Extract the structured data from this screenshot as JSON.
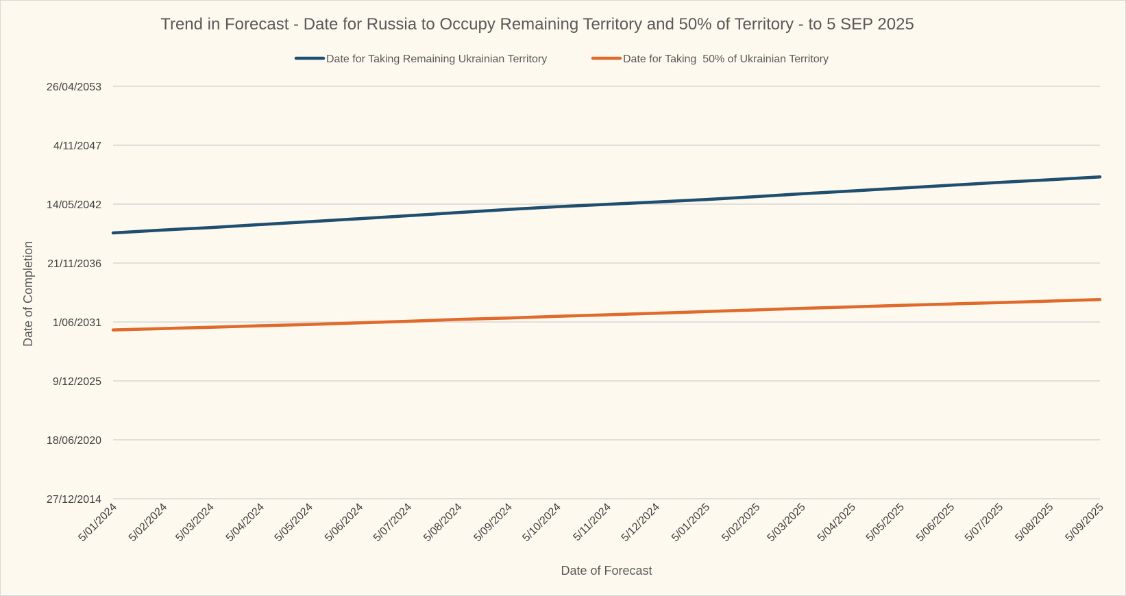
{
  "chart_data": {
    "type": "line",
    "title": "Trend in Forecast - Date for Russia to Occupy Remaining Territory and 50% of Territory - to 5 SEP 2025",
    "xlabel": "Date of Forecast",
    "ylabel": "Date of Completion",
    "legend_position": "top",
    "grid": "horizontal",
    "x_axis": {
      "type": "date",
      "min": "2024-01-05",
      "max": "2025-09-05",
      "ticks": [
        "2024-01-05",
        "2024-02-05",
        "2024-03-05",
        "2024-04-05",
        "2024-05-05",
        "2024-06-05",
        "2024-07-05",
        "2024-08-05",
        "2024-09-05",
        "2024-10-05",
        "2024-11-05",
        "2024-12-05",
        "2025-01-05",
        "2025-02-05",
        "2025-03-05",
        "2025-04-05",
        "2025-05-05",
        "2025-06-05",
        "2025-07-05",
        "2025-08-05",
        "2025-09-05"
      ],
      "tick_labels": [
        "5/01/2024",
        "5/02/2024",
        "5/03/2024",
        "5/04/2024",
        "5/05/2024",
        "5/06/2024",
        "5/07/2024",
        "5/08/2024",
        "5/09/2024",
        "5/10/2024",
        "5/11/2024",
        "5/12/2024",
        "5/01/2025",
        "5/02/2025",
        "5/03/2025",
        "5/04/2025",
        "5/05/2025",
        "5/06/2025",
        "5/07/2025",
        "5/08/2025",
        "5/09/2025"
      ]
    },
    "y_axis": {
      "type": "date",
      "min": "2014-12-27",
      "max": "2053-04-26",
      "ticks": [
        "2014-12-27",
        "2020-06-18",
        "2025-12-09",
        "2031-06-01",
        "2036-11-21",
        "2042-05-14",
        "2047-11-04",
        "2053-04-26"
      ],
      "tick_labels": [
        "27/12/2014",
        "18/06/2020",
        "9/12/2025",
        "1/06/2031",
        "21/11/2036",
        "14/05/2042",
        "4/11/2047",
        "26/04/2053"
      ]
    },
    "series": [
      {
        "name": "Date for Taking Remaining Ukrainian Territory",
        "color": "#1f4e6e",
        "points": [
          [
            "2024-01-05",
            "2039-09-10"
          ],
          [
            "2024-02-05",
            "2039-12-20"
          ],
          [
            "2024-03-05",
            "2040-03-10"
          ],
          [
            "2024-04-05",
            "2040-06-20"
          ],
          [
            "2024-05-05",
            "2040-09-25"
          ],
          [
            "2024-06-05",
            "2041-01-05"
          ],
          [
            "2024-07-05",
            "2041-04-15"
          ],
          [
            "2024-08-05",
            "2041-08-01"
          ],
          [
            "2024-09-05",
            "2041-11-15"
          ],
          [
            "2024-10-05",
            "2042-02-15"
          ],
          [
            "2024-11-05",
            "2042-05-10"
          ],
          [
            "2024-12-05",
            "2042-07-25"
          ],
          [
            "2025-01-05",
            "2042-10-20"
          ],
          [
            "2025-02-05",
            "2043-01-25"
          ],
          [
            "2025-03-05",
            "2043-05-01"
          ],
          [
            "2025-04-05",
            "2043-08-05"
          ],
          [
            "2025-05-05",
            "2043-11-10"
          ],
          [
            "2025-06-05",
            "2044-02-15"
          ],
          [
            "2025-07-05",
            "2044-05-20"
          ],
          [
            "2025-08-05",
            "2044-08-20"
          ],
          [
            "2025-09-05",
            "2044-11-25"
          ]
        ]
      },
      {
        "name": "Date for Taking  50% of Ukrainian Territory",
        "color": "#e06a2c",
        "points": [
          [
            "2024-01-05",
            "2030-09-05"
          ],
          [
            "2024-02-05",
            "2030-10-20"
          ],
          [
            "2024-03-05",
            "2030-12-05"
          ],
          [
            "2024-04-05",
            "2031-01-25"
          ],
          [
            "2024-05-05",
            "2031-03-10"
          ],
          [
            "2024-06-05",
            "2031-05-05"
          ],
          [
            "2024-07-05",
            "2031-06-25"
          ],
          [
            "2024-08-05",
            "2031-08-25"
          ],
          [
            "2024-09-05",
            "2031-10-15"
          ],
          [
            "2024-10-05",
            "2031-12-10"
          ],
          [
            "2024-11-05",
            "2032-02-01"
          ],
          [
            "2024-12-05",
            "2032-03-25"
          ],
          [
            "2025-01-05",
            "2032-05-20"
          ],
          [
            "2025-02-05",
            "2032-07-15"
          ],
          [
            "2025-03-05",
            "2032-09-05"
          ],
          [
            "2025-04-05",
            "2032-10-25"
          ],
          [
            "2025-05-05",
            "2032-12-15"
          ],
          [
            "2025-06-05",
            "2033-02-01"
          ],
          [
            "2025-07-05",
            "2033-03-20"
          ],
          [
            "2025-08-05",
            "2033-05-10"
          ],
          [
            "2025-09-05",
            "2033-07-01"
          ]
        ]
      }
    ]
  }
}
